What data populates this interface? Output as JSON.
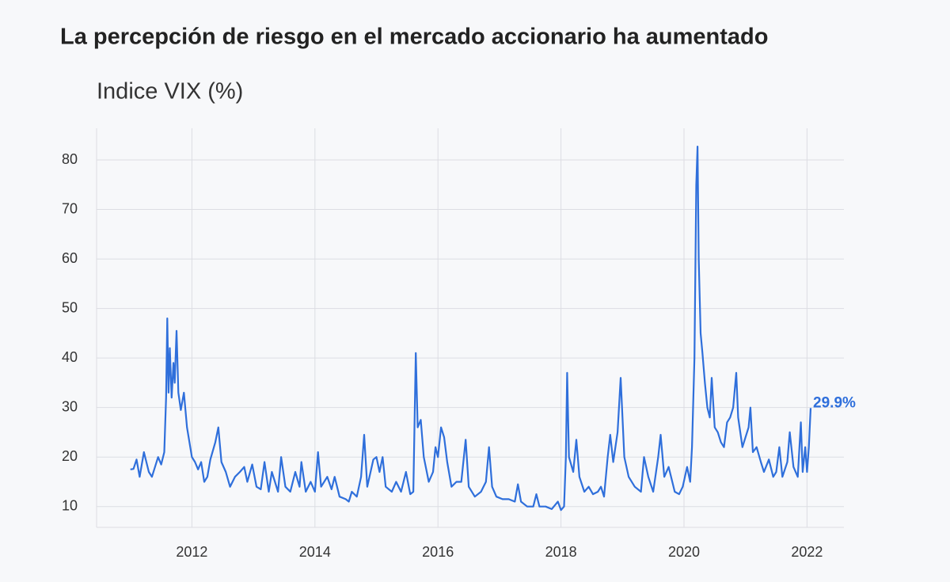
{
  "chart_data": {
    "type": "line",
    "title": "La percepción de riesgo en el mercado accionario ha aumentado",
    "subtitle": "Indice VIX (%)",
    "series": [
      {
        "name": "VIX",
        "color": "#2f6fdb",
        "x": [
          2011.0,
          2011.05,
          2011.1,
          2011.15,
          2011.22,
          2011.3,
          2011.35,
          2011.45,
          2011.5,
          2011.55,
          2011.58,
          2011.6,
          2011.62,
          2011.64,
          2011.67,
          2011.7,
          2011.72,
          2011.75,
          2011.78,
          2011.82,
          2011.87,
          2011.92,
          2012.0,
          2012.05,
          2012.1,
          2012.15,
          2012.2,
          2012.25,
          2012.3,
          2012.38,
          2012.43,
          2012.48,
          2012.55,
          2012.62,
          2012.7,
          2012.78,
          2012.85,
          2012.9,
          2012.98,
          2013.05,
          2013.12,
          2013.18,
          2013.25,
          2013.3,
          2013.4,
          2013.45,
          2013.52,
          2013.6,
          2013.68,
          2013.75,
          2013.78,
          2013.85,
          2013.93,
          2014.0,
          2014.05,
          2014.1,
          2014.2,
          2014.27,
          2014.32,
          2014.4,
          2014.5,
          2014.55,
          2014.6,
          2014.68,
          2014.75,
          2014.8,
          2014.85,
          2014.95,
          2015.0,
          2015.05,
          2015.1,
          2015.15,
          2015.25,
          2015.32,
          2015.4,
          2015.48,
          2015.55,
          2015.6,
          2015.64,
          2015.67,
          2015.72,
          2015.77,
          2015.85,
          2015.92,
          2015.96,
          2016.0,
          2016.05,
          2016.1,
          2016.15,
          2016.22,
          2016.3,
          2016.38,
          2016.45,
          2016.5,
          2016.6,
          2016.7,
          2016.78,
          2016.83,
          2016.88,
          2016.95,
          2017.05,
          2017.15,
          2017.25,
          2017.3,
          2017.35,
          2017.45,
          2017.55,
          2017.6,
          2017.65,
          2017.75,
          2017.85,
          2017.95,
          2018.0,
          2018.05,
          2018.08,
          2018.1,
          2018.13,
          2018.2,
          2018.25,
          2018.3,
          2018.38,
          2018.45,
          2018.52,
          2018.6,
          2018.65,
          2018.7,
          2018.76,
          2018.8,
          2018.85,
          2018.92,
          2018.97,
          2019.03,
          2019.1,
          2019.2,
          2019.3,
          2019.35,
          2019.42,
          2019.5,
          2019.58,
          2019.62,
          2019.68,
          2019.75,
          2019.85,
          2019.92,
          2019.98,
          2020.05,
          2020.1,
          2020.13,
          2020.17,
          2020.2,
          2020.22,
          2020.24,
          2020.27,
          2020.3,
          2020.34,
          2020.38,
          2020.42,
          2020.45,
          2020.5,
          2020.55,
          2020.6,
          2020.65,
          2020.7,
          2020.75,
          2020.8,
          2020.85,
          2020.88,
          2020.95,
          2021.0,
          2021.05,
          2021.08,
          2021.12,
          2021.18,
          2021.25,
          2021.3,
          2021.38,
          2021.45,
          2021.5,
          2021.55,
          2021.6,
          2021.68,
          2021.72,
          2021.78,
          2021.85,
          2021.9,
          2021.93,
          2021.97,
          2022.0,
          2022.03,
          2022.06
        ],
        "values": [
          17.5,
          17.6,
          19.5,
          16,
          21,
          17,
          16,
          20,
          18.5,
          21,
          32,
          48,
          33,
          42,
          32,
          39,
          35,
          45.5,
          33,
          29.5,
          33,
          26,
          20,
          19,
          17.5,
          19,
          15,
          16,
          19.5,
          23,
          26,
          19,
          17,
          14,
          16,
          17,
          18,
          15,
          18.5,
          14,
          13.5,
          19,
          13,
          17,
          13,
          20,
          14,
          13,
          17,
          14,
          19,
          13,
          15,
          13,
          21,
          14,
          16,
          13.5,
          16,
          12,
          11.5,
          11,
          13,
          12,
          16,
          24.5,
          14,
          19.5,
          20,
          17,
          20,
          14,
          13,
          15,
          13,
          17,
          12.5,
          13,
          41,
          26,
          27.5,
          20,
          15,
          17,
          22,
          20,
          26,
          24,
          19,
          14,
          15,
          15,
          23.5,
          14,
          12,
          13,
          15,
          22,
          14,
          12,
          11.5,
          11.5,
          11,
          14.5,
          11,
          10,
          10,
          12.5,
          10,
          10,
          9.5,
          11,
          9.3,
          10,
          20,
          37,
          20,
          17,
          23.5,
          16,
          13,
          14,
          12.5,
          13,
          14,
          12,
          20,
          24.5,
          19,
          25,
          36,
          20,
          16,
          14,
          13,
          20,
          16,
          13,
          20,
          24.5,
          16,
          18,
          13,
          12.5,
          14,
          18,
          15,
          22,
          40,
          75,
          82.7,
          60,
          45,
          41,
          35,
          30,
          28,
          36,
          26,
          25,
          23,
          22,
          27,
          28,
          30,
          37,
          28,
          22,
          24,
          26,
          30,
          21,
          22,
          19,
          17,
          19.5,
          16,
          17,
          22,
          16,
          19,
          25,
          18,
          16,
          27,
          17,
          22,
          17,
          22,
          29.9
        ],
        "end_label": "29.9%"
      }
    ],
    "xlim": [
      2010.45,
      2022.6
    ],
    "xticks": [
      2012,
      2014,
      2016,
      2018,
      2020,
      2022
    ],
    "ylim": [
      5.8,
      86.4
    ],
    "yticks": [
      10,
      20,
      30,
      40,
      50,
      60,
      70,
      80
    ],
    "grid": true
  }
}
